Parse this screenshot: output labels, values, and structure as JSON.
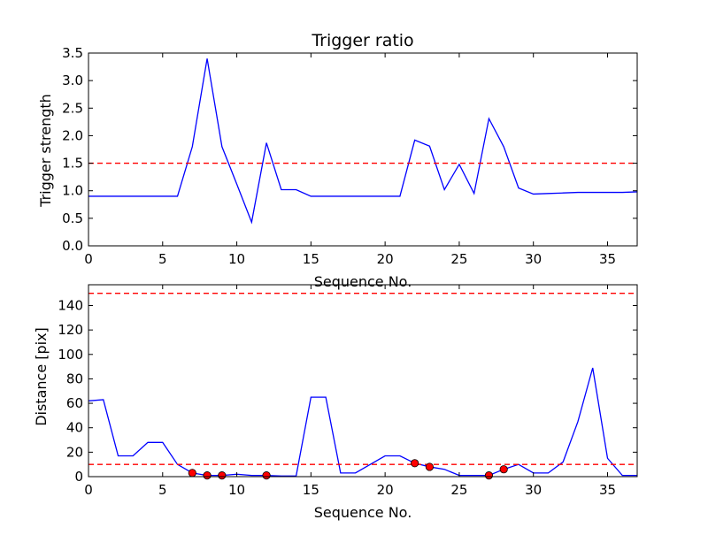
{
  "chart_data": [
    {
      "type": "line",
      "title": "Trigger ratio",
      "xlabel": "Sequence No.",
      "ylabel": "Trigger strength",
      "xlim": [
        0,
        37
      ],
      "ylim": [
        0,
        3.5
      ],
      "xticks": [
        0,
        5,
        10,
        15,
        20,
        25,
        30,
        35
      ],
      "yticks": [
        0.0,
        0.5,
        1.0,
        1.5,
        2.0,
        2.5,
        3.0,
        3.5
      ],
      "ytick_decimals": 1,
      "grid": false,
      "line_color": "#0000ff",
      "series": [
        {
          "x": [
            0,
            1,
            2,
            3,
            4,
            5,
            6,
            7,
            8,
            9,
            10,
            11,
            12,
            13,
            14,
            15,
            16,
            17,
            18,
            19,
            20,
            21,
            22,
            23,
            24,
            25,
            26,
            27,
            28,
            29,
            30,
            31,
            32,
            33,
            34,
            35,
            36,
            37
          ],
          "values": [
            0.9,
            0.9,
            0.9,
            0.9,
            0.9,
            0.9,
            0.9,
            1.8,
            3.4,
            1.8,
            1.12,
            0.43,
            1.87,
            1.02,
            1.02,
            0.9,
            0.9,
            0.9,
            0.9,
            0.9,
            0.9,
            0.9,
            1.92,
            1.81,
            1.02,
            1.48,
            0.95,
            2.31,
            1.8,
            1.05,
            0.94,
            0.95,
            0.96,
            0.97,
            0.97,
            0.97,
            0.97,
            0.98
          ]
        }
      ],
      "thresholds": [
        {
          "y": 1.5,
          "color": "#ff0000",
          "style": "dashed"
        }
      ],
      "markers": []
    },
    {
      "type": "line",
      "title": "",
      "xlabel": "Sequence No.",
      "ylabel": "Distance [pix]",
      "xlim": [
        0,
        37
      ],
      "ylim": [
        0,
        157
      ],
      "xticks": [
        0,
        5,
        10,
        15,
        20,
        25,
        30,
        35
      ],
      "yticks": [
        0,
        20,
        40,
        60,
        80,
        100,
        120,
        140
      ],
      "ytick_decimals": 0,
      "grid": false,
      "line_color": "#0000ff",
      "series": [
        {
          "x": [
            0,
            1,
            2,
            3,
            4,
            5,
            6,
            7,
            8,
            9,
            10,
            11,
            12,
            13,
            14,
            15,
            16,
            17,
            18,
            19,
            20,
            21,
            22,
            23,
            24,
            25,
            26,
            27,
            28,
            29,
            30,
            31,
            32,
            33,
            34,
            35,
            36,
            37
          ],
          "values": [
            62,
            63,
            17,
            17,
            28,
            28,
            10,
            3,
            1,
            1,
            2,
            1,
            1,
            0.5,
            0.5,
            65,
            65,
            3,
            3,
            10,
            17,
            17,
            11,
            8,
            6,
            1,
            1,
            1,
            6,
            10,
            3,
            3,
            12,
            45,
            89,
            15,
            1,
            1
          ]
        }
      ],
      "thresholds": [
        {
          "y": 150,
          "color": "#ff0000",
          "style": "dashed"
        },
        {
          "y": 10,
          "color": "#ff0000",
          "style": "dashed"
        }
      ],
      "markers": [
        {
          "x": 7,
          "y": 3
        },
        {
          "x": 8,
          "y": 1
        },
        {
          "x": 9,
          "y": 1
        },
        {
          "x": 12,
          "y": 1
        },
        {
          "x": 22,
          "y": 11
        },
        {
          "x": 23,
          "y": 8
        },
        {
          "x": 27,
          "y": 1
        },
        {
          "x": 28,
          "y": 6
        }
      ],
      "marker_color": "#ff0000"
    }
  ]
}
